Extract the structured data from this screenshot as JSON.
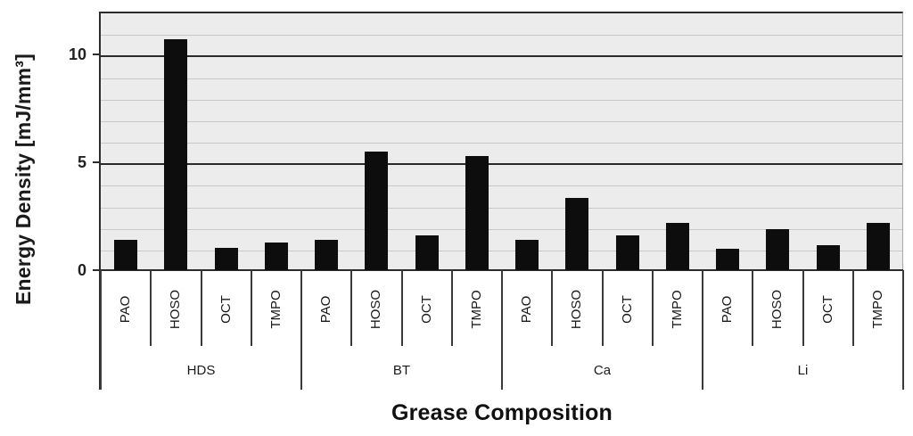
{
  "chart_data": {
    "type": "bar",
    "title": "",
    "ylabel": "Energy Density [mJ/mm³]",
    "xlabel": "Grease Composition",
    "ylim": [
      0,
      12
    ],
    "yticks": [
      0,
      5,
      10
    ],
    "minor_gridlines": [
      1,
      2,
      3,
      4,
      6,
      7,
      8,
      9,
      11
    ],
    "major_gridlines": [
      5,
      10
    ],
    "grid": true,
    "legend": false,
    "categories": [
      "HDS",
      "BT",
      "Ca",
      "Li"
    ],
    "subcategories": [
      "PAO",
      "HOSO",
      "OCT",
      "TMPO"
    ],
    "series": [
      {
        "name": "HDS",
        "values": [
          1.4,
          10.7,
          1.05,
          1.3
        ]
      },
      {
        "name": "BT",
        "values": [
          1.4,
          5.5,
          1.6,
          5.3
        ]
      },
      {
        "name": "Ca",
        "values": [
          1.4,
          3.35,
          1.6,
          2.2
        ]
      },
      {
        "name": "Li",
        "values": [
          1.0,
          1.9,
          1.15,
          2.2
        ]
      }
    ],
    "colors": {
      "bar": "#0d0d0d",
      "plot_background": "#ececec",
      "minor_grid": "#c8c8c8",
      "major_grid": "#2b2b2b",
      "axis": "#2b2b2b",
      "page_background": "#ffffff"
    }
  }
}
